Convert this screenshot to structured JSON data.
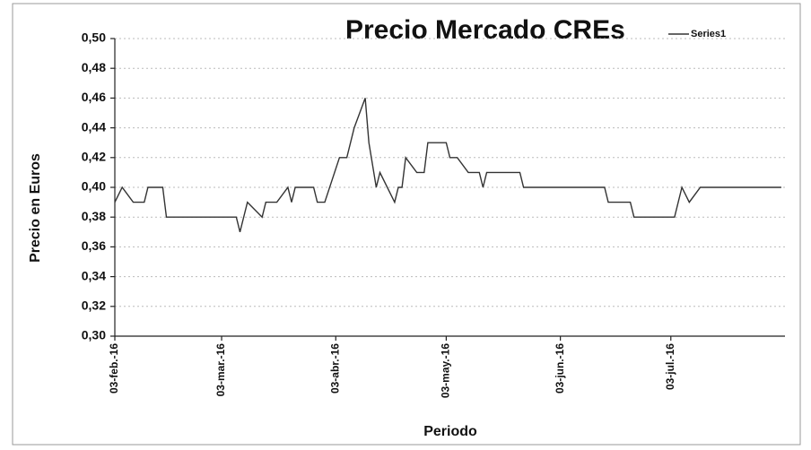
{
  "chart_data": {
    "type": "line",
    "title": "Precio Mercado CREs",
    "x_label": "Periodo",
    "y_label": "Precio en Euros",
    "series": [
      {
        "name": "Series1",
        "color": "#333333",
        "x": [
          "2016-02-03",
          "2016-02-05",
          "2016-02-08",
          "2016-02-11",
          "2016-02-12",
          "2016-02-16",
          "2016-02-17",
          "2016-03-07",
          "2016-03-08",
          "2016-03-10",
          "2016-03-14",
          "2016-03-15",
          "2016-03-18",
          "2016-03-21",
          "2016-03-22",
          "2016-03-23",
          "2016-03-28",
          "2016-03-29",
          "2016-03-31",
          "2016-04-04",
          "2016-04-06",
          "2016-04-08",
          "2016-04-11",
          "2016-04-12",
          "2016-04-14",
          "2016-04-15",
          "2016-04-19",
          "2016-04-20",
          "2016-04-21",
          "2016-04-22",
          "2016-04-25",
          "2016-04-27",
          "2016-04-28",
          "2016-05-03",
          "2016-05-04",
          "2016-05-06",
          "2016-05-09",
          "2016-05-12",
          "2016-05-13",
          "2016-05-14",
          "2016-05-23",
          "2016-05-24",
          "2016-06-15",
          "2016-06-16",
          "2016-06-22",
          "2016-06-23",
          "2016-07-04",
          "2016-07-06",
          "2016-07-08",
          "2016-07-11",
          "2016-08-02"
        ],
        "values": [
          0.39,
          0.4,
          0.39,
          0.39,
          0.4,
          0.4,
          0.38,
          0.38,
          0.37,
          0.39,
          0.38,
          0.39,
          0.39,
          0.4,
          0.39,
          0.4,
          0.4,
          0.39,
          0.39,
          0.42,
          0.42,
          0.44,
          0.46,
          0.43,
          0.4,
          0.41,
          0.39,
          0.4,
          0.4,
          0.42,
          0.41,
          0.41,
          0.43,
          0.43,
          0.42,
          0.42,
          0.41,
          0.41,
          0.4,
          0.41,
          0.41,
          0.4,
          0.4,
          0.39,
          0.39,
          0.38,
          0.38,
          0.4,
          0.39,
          0.4,
          0.4
        ]
      }
    ],
    "xlim": [
      "2016-02-03",
      "2016-08-03"
    ],
    "xticks": [
      {
        "value": "2016-02-03",
        "label": "03-feb.-16"
      },
      {
        "value": "2016-03-03",
        "label": "03-mar.-16"
      },
      {
        "value": "2016-04-03",
        "label": "03-abr.-16"
      },
      {
        "value": "2016-05-03",
        "label": "03-may.-16"
      },
      {
        "value": "2016-06-03",
        "label": "03-jun.-16"
      },
      {
        "value": "2016-07-03",
        "label": "03-jul.-16"
      }
    ],
    "ylim": [
      0.3,
      0.5
    ],
    "yticks": [
      {
        "value": 0.3,
        "label": "0,30"
      },
      {
        "value": 0.32,
        "label": "0,32"
      },
      {
        "value": 0.34,
        "label": "0,34"
      },
      {
        "value": 0.36,
        "label": "0,36"
      },
      {
        "value": 0.38,
        "label": "0,38"
      },
      {
        "value": 0.4,
        "label": "0,40"
      },
      {
        "value": 0.42,
        "label": "0,42"
      },
      {
        "value": 0.44,
        "label": "0,44"
      },
      {
        "value": 0.46,
        "label": "0,46"
      },
      {
        "value": 0.48,
        "label": "0,48"
      },
      {
        "value": 0.5,
        "label": "0,50"
      }
    ],
    "grid": true
  }
}
